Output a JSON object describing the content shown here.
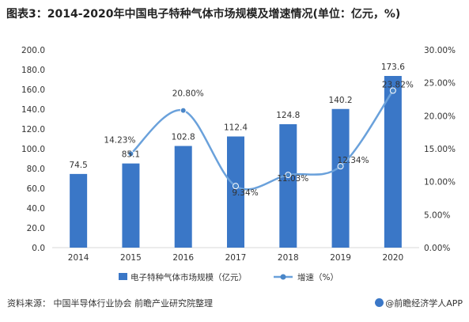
{
  "title": "图表3：2014-2020年中国电子特种气体市场规模及增速情况(单位：亿元，%)",
  "source": "资料来源：  中国半导体行业协会 前瞻产业研究院整理",
  "credit": "@前瞻经济学人APP",
  "colors": {
    "bar": "#3a77c7",
    "line": "#6aa1db",
    "marker": "#4a86c8",
    "grid": "#d9d9d9",
    "text": "#333333"
  },
  "chart_data": {
    "type": "bar",
    "categories": [
      "2014",
      "2015",
      "2016",
      "2017",
      "2018",
      "2019",
      "2020"
    ],
    "series": [
      {
        "name": "电子特种气体市场规模（亿元）",
        "type": "bar",
        "axis": "left",
        "values": [
          74.5,
          85.1,
          102.8,
          112.4,
          124.8,
          140.2,
          173.6
        ],
        "labels": [
          "74.5",
          "85.1",
          "102.8",
          "112.4",
          "124.8",
          "140.2",
          "173.6"
        ]
      },
      {
        "name": "增速（%）",
        "type": "line",
        "axis": "right",
        "smooth": true,
        "values": [
          null,
          14.23,
          20.8,
          9.34,
          11.03,
          12.34,
          23.82
        ],
        "labels": [
          "",
          "14.23%",
          "20.80%",
          "9.34%",
          "11.03%",
          "12.34%",
          "23.82%"
        ]
      }
    ],
    "y_left": {
      "min": 0,
      "max": 200,
      "step": 20,
      "ticks": [
        "0.0",
        "20.0",
        "40.0",
        "60.0",
        "80.0",
        "100.0",
        "120.0",
        "140.0",
        "160.0",
        "180.0",
        "200.0"
      ]
    },
    "y_right": {
      "min": 0,
      "max": 30,
      "step": 5,
      "ticks": [
        "0.00%",
        "5.00%",
        "10.00%",
        "15.00%",
        "20.00%",
        "25.00%",
        "30.00%"
      ]
    },
    "grid": false,
    "legend_position": "bottom"
  }
}
